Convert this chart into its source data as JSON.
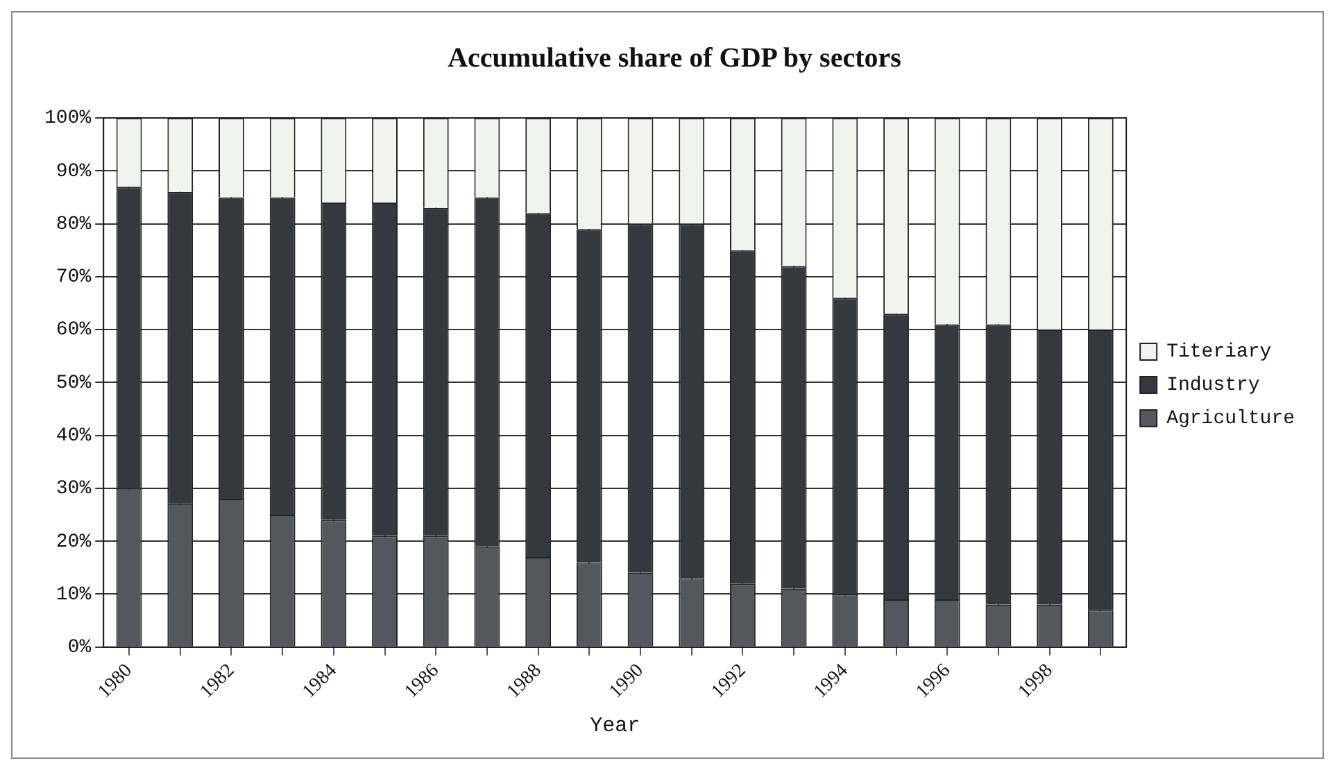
{
  "chart_data": {
    "type": "bar",
    "title": "Accumulative share of GDP by sectors",
    "xlabel": "Year",
    "stacked": true,
    "grid": true,
    "legend": "right",
    "categories": [
      "1980",
      null,
      "1982",
      null,
      "1984",
      null,
      "1986",
      null,
      "1988",
      null,
      "1990",
      null,
      "1992",
      null,
      "1994",
      null,
      "1996",
      null,
      "1998",
      null
    ],
    "series": [
      {
        "name": "Agriculture",
        "color": "#55575e",
        "values": [
          30,
          27,
          28,
          25,
          24,
          21,
          21,
          19,
          17,
          16,
          14,
          13,
          12,
          11,
          10,
          9,
          9,
          8,
          8,
          7
        ]
      },
      {
        "name": "Industry",
        "color": "#36383f",
        "values": [
          57,
          59,
          57,
          60,
          60,
          63,
          62,
          66,
          65,
          63,
          66,
          67,
          63,
          61,
          56,
          54,
          52,
          53,
          52,
          53
        ]
      },
      {
        "name": "Titeriary",
        "color": "#f1f4ee",
        "values": [
          13,
          14,
          15,
          15,
          16,
          16,
          17,
          15,
          18,
          21,
          20,
          20,
          25,
          28,
          34,
          37,
          39,
          39,
          40,
          40
        ]
      }
    ],
    "ylim": [
      0,
      100
    ],
    "yticks": [
      {
        "value": 0,
        "label": "0%"
      },
      {
        "value": 10,
        "label": "10%"
      },
      {
        "value": 20,
        "label": "20%"
      },
      {
        "value": 30,
        "label": "30%"
      },
      {
        "value": 40,
        "label": "40%"
      },
      {
        "value": 50,
        "label": "50%"
      },
      {
        "value": 60,
        "label": "60%"
      },
      {
        "value": 70,
        "label": "70%"
      },
      {
        "value": 80,
        "label": "80%"
      },
      {
        "value": 90,
        "label": "90%"
      },
      {
        "value": 100,
        "label": "100%"
      }
    ]
  }
}
